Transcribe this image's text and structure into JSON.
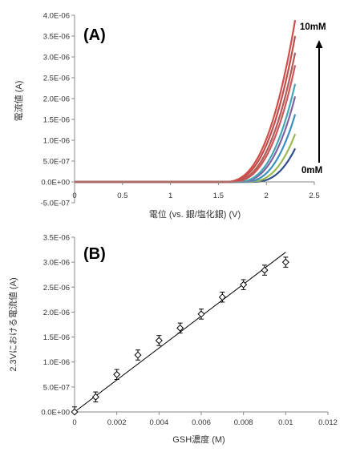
{
  "chart_data": [
    {
      "panel_label": "(A)",
      "type": "line",
      "xlabel": "電位 (vs. 銀/塩化銀) (V)",
      "ylabel": "電流値 (A)",
      "xlim": [
        0,
        2.5
      ],
      "ylim": [
        -5e-07,
        4e-06
      ],
      "x_ticks": [
        "0",
        "0.5",
        "1",
        "1.5",
        "2",
        "2.5"
      ],
      "y_ticks": [
        "-5.0E-07",
        "0.0E+00",
        "5.0E-07",
        "1.0E-06",
        "1.5E-06",
        "2.0E-06",
        "2.5E-06",
        "3.0E-06",
        "3.5E-06",
        "4.0E-06"
      ],
      "grid": false,
      "annotations": {
        "top": "10mM",
        "bottom": "0mM"
      },
      "series": [
        {
          "color": "#2e4f8f",
          "end_x": 2.3,
          "end_y": 8e-07,
          "onset_x": 1.85
        },
        {
          "color": "#99b94f",
          "end_x": 2.3,
          "end_y": 1.15e-06,
          "onset_x": 1.8
        },
        {
          "color": "#3a8fc2",
          "end_x": 2.3,
          "end_y": 1.62e-06,
          "onset_x": 1.75
        },
        {
          "color": "#7f64a3",
          "end_x": 2.3,
          "end_y": 2.05e-06,
          "onset_x": 1.7
        },
        {
          "color": "#45a6b8",
          "end_x": 2.3,
          "end_y": 2.35e-06,
          "onset_x": 1.68
        },
        {
          "color": "#d0575a",
          "end_x": 2.3,
          "end_y": 2.8e-06,
          "onset_x": 1.62
        },
        {
          "color": "#b35a55",
          "end_x": 2.3,
          "end_y": 3.1e-06,
          "onset_x": 1.6
        },
        {
          "color": "#c44d4a",
          "end_x": 2.3,
          "end_y": 3.5e-06,
          "onset_x": 1.57
        },
        {
          "color": "#cf4f4c",
          "end_x": 2.3,
          "end_y": 3.88e-06,
          "onset_x": 1.55
        }
      ]
    },
    {
      "panel_label": "(B)",
      "type": "scatter",
      "xlabel": "GSH濃度 (M)",
      "ylabel": "2.3Vにおける電流値 (A)",
      "xlim": [
        0,
        0.012
      ],
      "ylim": [
        0,
        3.5e-06
      ],
      "x_ticks": [
        "0",
        "0.002",
        "0.004",
        "0.006",
        "0.008",
        "0.01",
        "0.012"
      ],
      "y_ticks": [
        "0.0E+00",
        "5.0E-07",
        "1.0E-06",
        "1.5E-06",
        "2.0E-06",
        "2.5E-06",
        "3.0E-06",
        "3.5E-06"
      ],
      "grid": false,
      "marker": "open-diamond",
      "x": [
        0,
        0.001,
        0.002,
        0.003,
        0.004,
        0.005,
        0.006,
        0.007,
        0.008,
        0.009,
        0.01
      ],
      "y": [
        0.0,
        3e-07,
        7.5e-07,
        1.14e-06,
        1.43e-06,
        1.68e-06,
        1.96e-06,
        2.3e-06,
        2.55e-06,
        2.84e-06,
        3e-06
      ],
      "error": [
        1e-07,
        1e-07,
        1e-07,
        1e-07,
        1e-07,
        1e-07,
        1e-07,
        1e-07,
        1e-07,
        1e-07,
        1e-07
      ],
      "fit": {
        "slope": 0.00032,
        "intercept": 0.0,
        "x_range": [
          0,
          0.01
        ]
      }
    }
  ]
}
